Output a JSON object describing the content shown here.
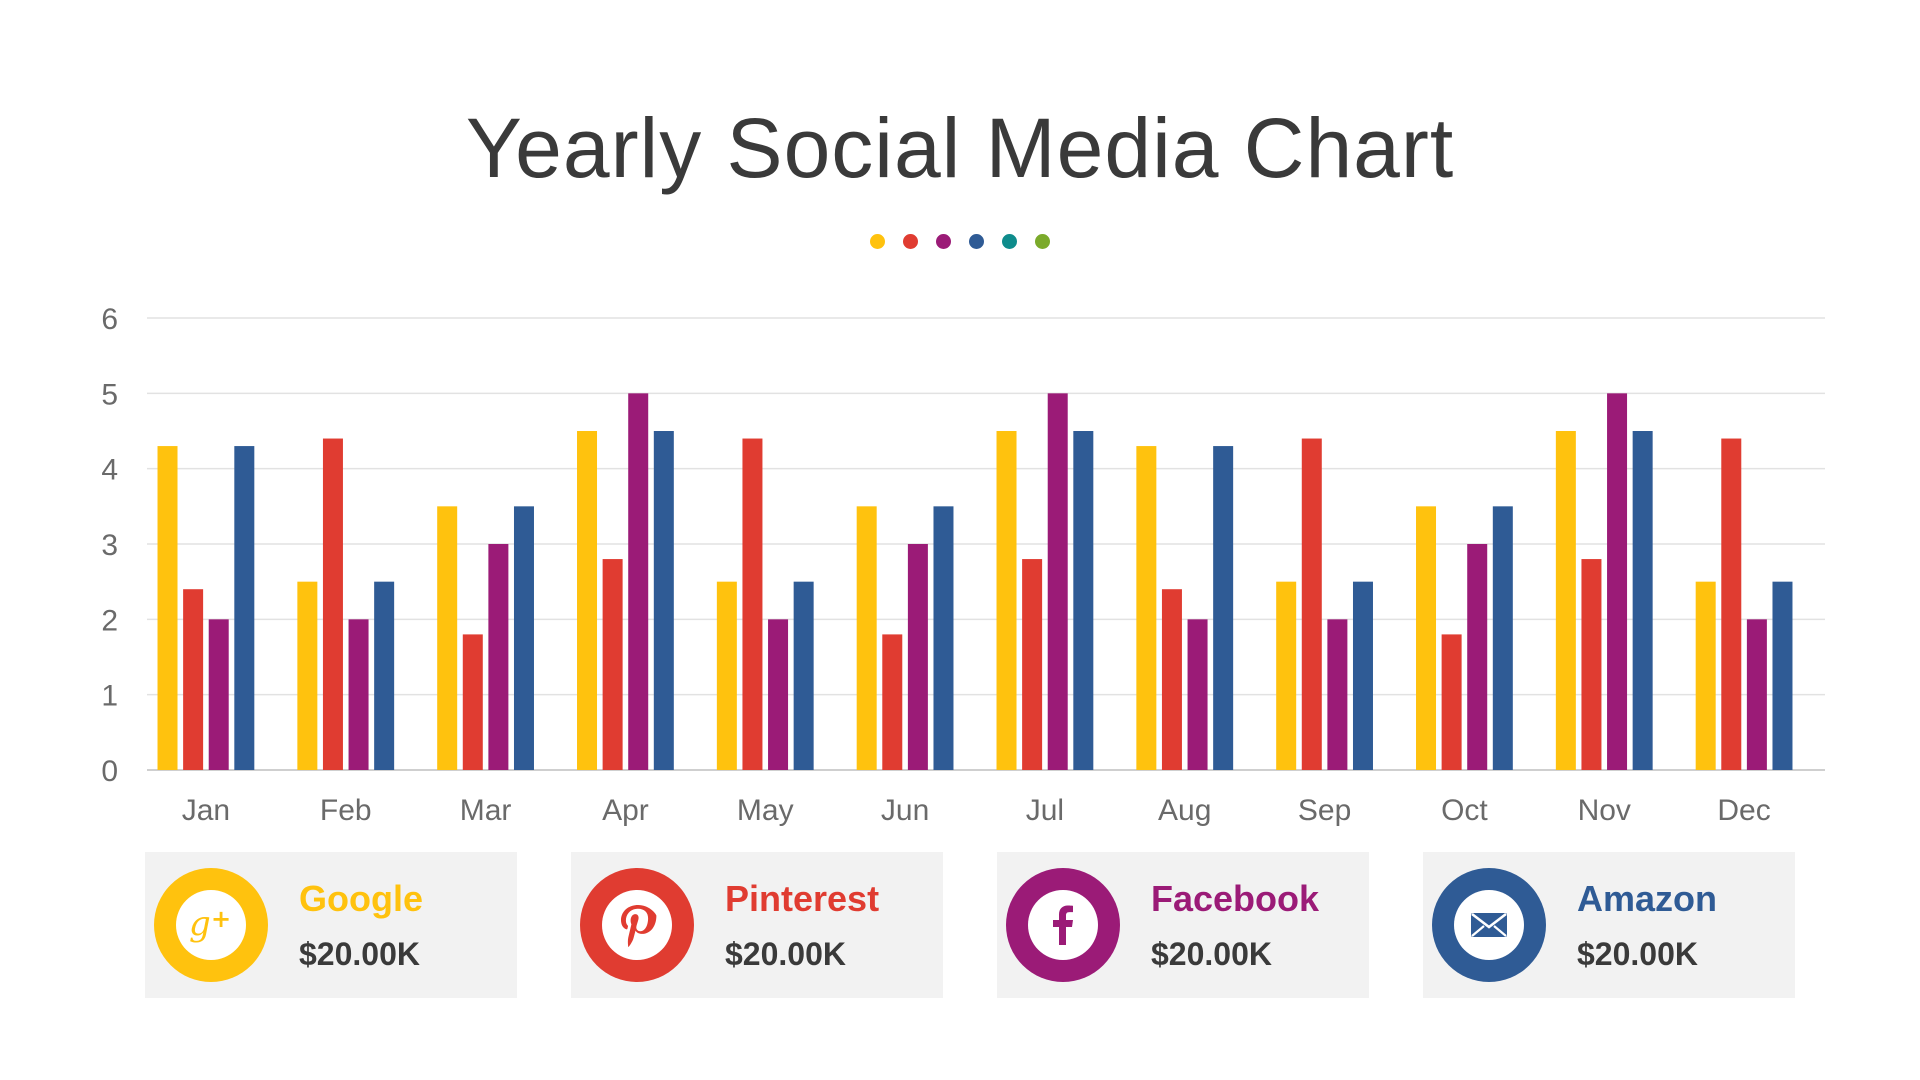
{
  "title": "Yearly Social Media Chart",
  "dot_colors": [
    "#FFC20E",
    "#E03C31",
    "#9B1B77",
    "#2F5B95",
    "#0E8C8C",
    "#7BAA2B"
  ],
  "chart_data": {
    "type": "bar",
    "title": "Yearly Social Media Chart",
    "xlabel": "",
    "ylabel": "",
    "ylim": [
      0,
      6
    ],
    "yticks": [
      0,
      1,
      2,
      3,
      4,
      5,
      6
    ],
    "grid": true,
    "categories": [
      "Jan",
      "Feb",
      "Mar",
      "Apr",
      "May",
      "Jun",
      "Jul",
      "Aug",
      "Sep",
      "Oct",
      "Nov",
      "Dec"
    ],
    "series": [
      {
        "name": "Google",
        "color": "#FFC20E",
        "values": [
          4.3,
          2.5,
          3.5,
          4.5,
          2.5,
          3.5,
          4.5,
          4.3,
          2.5,
          3.5,
          4.5,
          2.5
        ]
      },
      {
        "name": "Pinterest",
        "color": "#E03C31",
        "values": [
          2.4,
          4.4,
          1.8,
          2.8,
          4.4,
          1.8,
          2.8,
          2.4,
          4.4,
          1.8,
          2.8,
          4.4
        ]
      },
      {
        "name": "Facebook",
        "color": "#9B1B77",
        "values": [
          2.0,
          2.0,
          3.0,
          5.0,
          2.0,
          3.0,
          5.0,
          2.0,
          2.0,
          3.0,
          5.0,
          2.0
        ]
      },
      {
        "name": "Amazon",
        "color": "#2F5B95",
        "values": [
          4.3,
          2.5,
          3.5,
          4.5,
          2.5,
          3.5,
          4.5,
          4.3,
          2.5,
          3.5,
          4.5,
          2.5
        ]
      }
    ]
  },
  "cards": [
    {
      "name": "Google",
      "value": "$20.00K",
      "color": "#FFC20E",
      "icon": "google-plus-icon"
    },
    {
      "name": "Pinterest",
      "value": "$20.00K",
      "color": "#E03C31",
      "icon": "pinterest-icon"
    },
    {
      "name": "Facebook",
      "value": "$20.00K",
      "color": "#9B1B77",
      "icon": "facebook-icon"
    },
    {
      "name": "Amazon",
      "value": "$20.00K",
      "color": "#2F5B95",
      "icon": "envelope-icon"
    }
  ]
}
